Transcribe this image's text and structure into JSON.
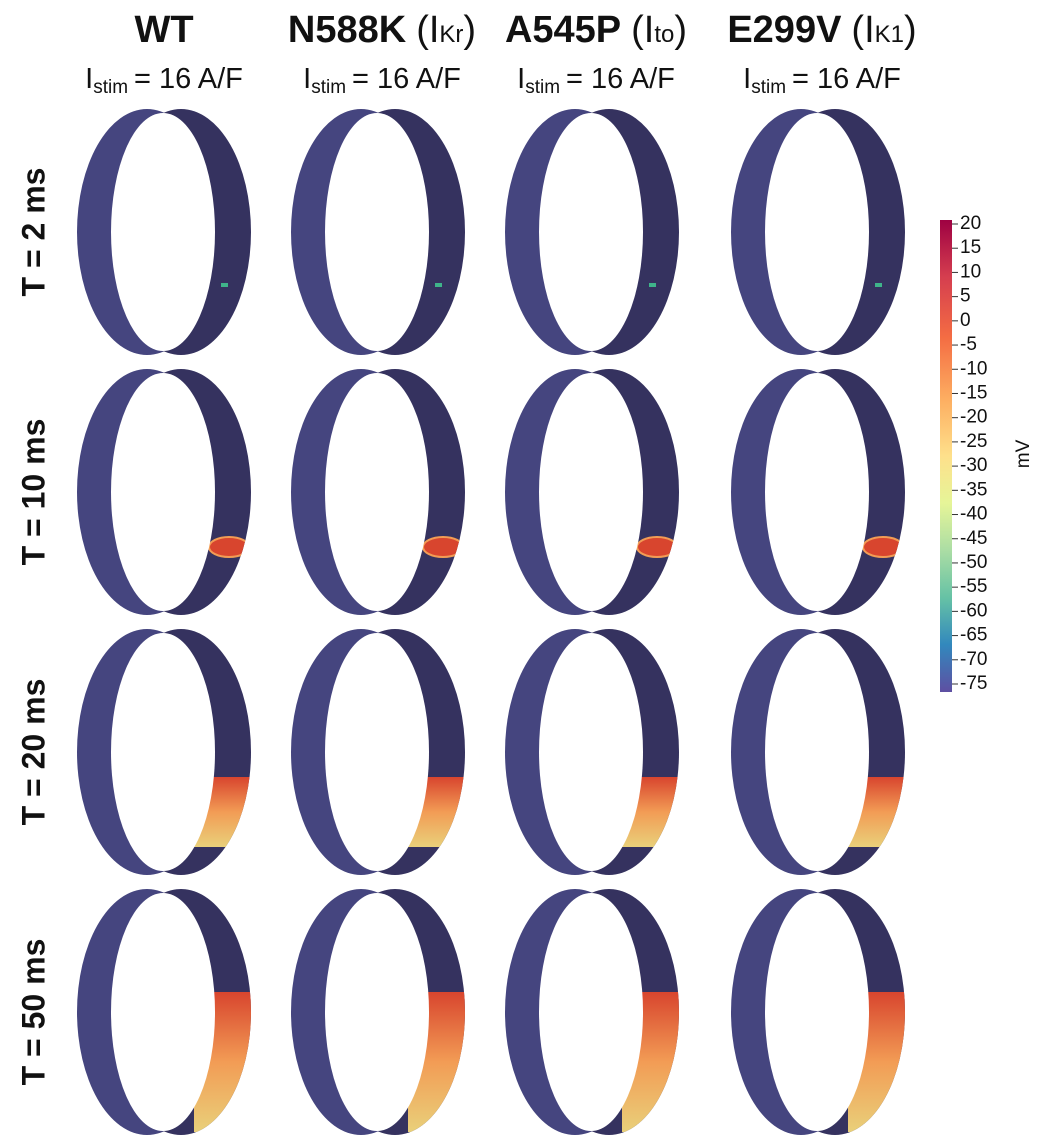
{
  "columns": [
    {
      "title": "WT",
      "stim": {
        "symbol": "I",
        "sub": "stim",
        "rest": "= 16 A/F"
      }
    },
    {
      "title": "N588K",
      "open": "(I",
      "sub": "Kr",
      "close": ")",
      "stim": {
        "symbol": "I",
        "sub": "stim",
        "rest": "= 16 A/F"
      }
    },
    {
      "title": "A545P",
      "open": "(I",
      "sub": "to",
      "close": ")",
      "stim": {
        "symbol": "I",
        "sub": "stim",
        "rest": "= 16 A/F"
      }
    },
    {
      "title": "E299V",
      "open": "(I",
      "sub": "K1",
      "close": ")",
      "stim": {
        "symbol": "I",
        "sub": "stim",
        "rest": "= 16 A/F"
      }
    }
  ],
  "rows": [
    "T = 2 ms",
    "T = 10 ms",
    "T = 20 ms",
    "T = 50 ms"
  ],
  "colorbar": {
    "ticks": [
      20,
      15,
      10,
      5,
      0,
      -5,
      -10,
      -15,
      -20,
      -25,
      -30,
      -35,
      -40,
      -45,
      -50,
      -55,
      -60,
      -65,
      -70,
      -75
    ],
    "unit": "mV"
  }
}
